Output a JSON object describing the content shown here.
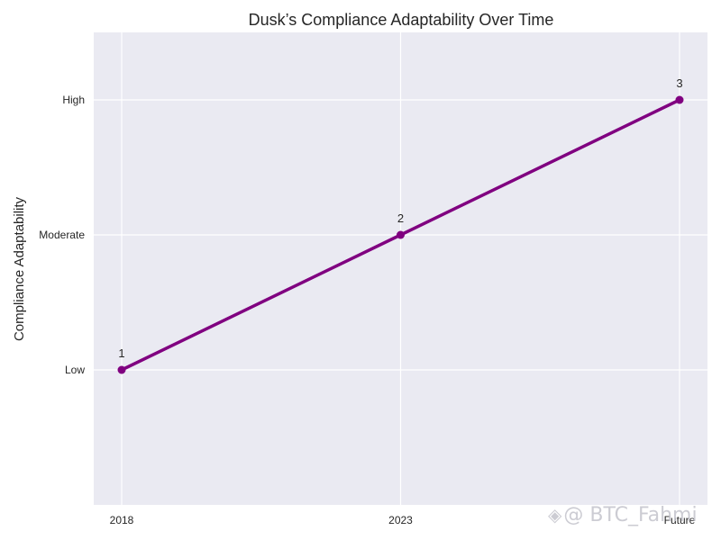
{
  "chart_data": {
    "type": "line",
    "title": "Dusk’s Compliance Adaptability Over Time",
    "xlabel": "",
    "ylabel": "Compliance Adaptability",
    "categories": [
      "2018",
      "2023",
      "Future"
    ],
    "yticks": [
      {
        "value": 1,
        "label": "Low"
      },
      {
        "value": 2,
        "label": "Moderate"
      },
      {
        "value": 3,
        "label": "High"
      }
    ],
    "ylim": [
      0.0,
      3.5
    ],
    "series": [
      {
        "values": [
          1,
          2,
          3
        ],
        "data_labels": [
          "1",
          "2",
          "3"
        ],
        "color": "#800080"
      }
    ],
    "grid": true,
    "background_color": "#eaeaf2"
  },
  "watermark": {
    "icon": "binance-logo-icon",
    "text": "@ BTC_Fahmi"
  }
}
